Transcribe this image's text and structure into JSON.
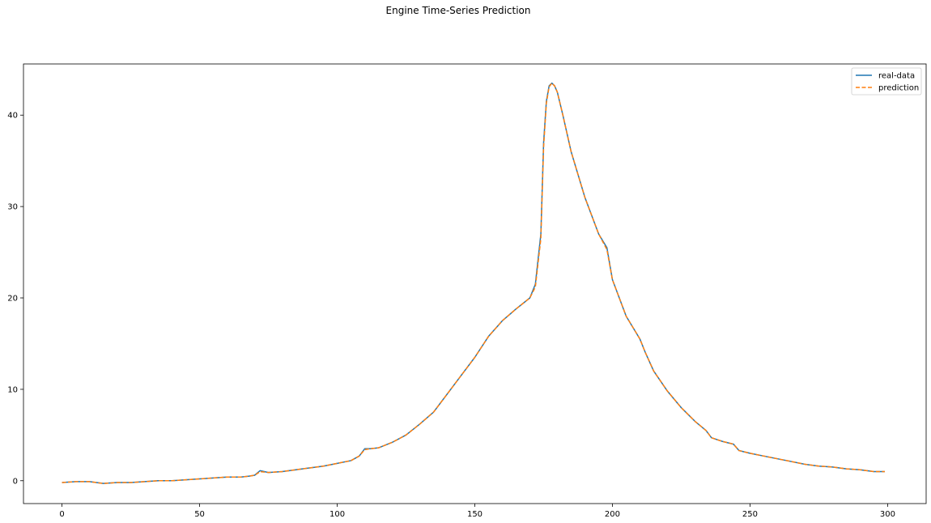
{
  "chart_data": {
    "type": "line",
    "title": "Engine Time-Series Prediction",
    "xlabel": "",
    "ylabel": "",
    "xlim": [
      -14,
      314
    ],
    "ylim": [
      -2.5,
      45.6
    ],
    "xticks": [
      0,
      50,
      100,
      150,
      200,
      250,
      300
    ],
    "yticks": [
      0,
      10,
      20,
      30,
      40
    ],
    "grid": false,
    "legend_position": "top-right",
    "series": [
      {
        "name": "real-data",
        "color": "#1f77b4",
        "line_style": "solid",
        "x": [
          0,
          5,
          10,
          15,
          20,
          25,
          30,
          35,
          40,
          45,
          50,
          55,
          60,
          65,
          68,
          70,
          72,
          75,
          80,
          85,
          90,
          95,
          100,
          105,
          108,
          110,
          112,
          115,
          120,
          125,
          130,
          135,
          140,
          145,
          150,
          155,
          160,
          165,
          170,
          172,
          174,
          175,
          176,
          177,
          178,
          179,
          180,
          182,
          185,
          190,
          195,
          198,
          200,
          205,
          210,
          212,
          215,
          220,
          225,
          230,
          234,
          236,
          240,
          244,
          246,
          250,
          255,
          260,
          265,
          270,
          275,
          280,
          285,
          290,
          295,
          299
        ],
        "values": [
          -0.2,
          -0.1,
          -0.1,
          -0.3,
          -0.2,
          -0.2,
          -0.1,
          0.0,
          0.0,
          0.1,
          0.2,
          0.3,
          0.4,
          0.4,
          0.5,
          0.6,
          1.1,
          0.9,
          1.0,
          1.2,
          1.4,
          1.6,
          1.9,
          2.2,
          2.7,
          3.5,
          3.5,
          3.6,
          4.2,
          5.0,
          6.2,
          7.5,
          9.5,
          11.5,
          13.5,
          15.8,
          17.5,
          18.8,
          20.0,
          21.5,
          27.0,
          37.0,
          41.5,
          43.2,
          43.5,
          43.2,
          42.5,
          40.0,
          36.0,
          31.0,
          27.0,
          25.5,
          22.0,
          18.0,
          15.5,
          14.0,
          12.0,
          9.8,
          8.0,
          6.5,
          5.5,
          4.7,
          4.3,
          4.0,
          3.3,
          3.0,
          2.7,
          2.4,
          2.1,
          1.8,
          1.6,
          1.5,
          1.3,
          1.2,
          1.0,
          1.0
        ]
      },
      {
        "name": "prediction",
        "color": "#ff7f0e",
        "line_style": "dashed",
        "x": [
          0,
          5,
          10,
          15,
          20,
          25,
          30,
          35,
          40,
          45,
          50,
          55,
          60,
          65,
          68,
          70,
          72,
          75,
          80,
          85,
          90,
          95,
          100,
          105,
          108,
          110,
          112,
          115,
          120,
          125,
          130,
          135,
          140,
          145,
          150,
          155,
          160,
          165,
          170,
          172,
          174,
          175,
          176,
          177,
          178,
          179,
          180,
          182,
          185,
          190,
          195,
          198,
          200,
          205,
          210,
          212,
          215,
          220,
          225,
          230,
          234,
          236,
          240,
          244,
          246,
          250,
          255,
          260,
          265,
          270,
          275,
          280,
          285,
          290,
          295,
          299
        ],
        "values": [
          -0.2,
          -0.1,
          -0.1,
          -0.3,
          -0.2,
          -0.2,
          -0.1,
          0.0,
          0.0,
          0.1,
          0.2,
          0.3,
          0.4,
          0.4,
          0.5,
          0.6,
          1.0,
          0.9,
          1.0,
          1.2,
          1.4,
          1.6,
          1.9,
          2.2,
          2.7,
          3.4,
          3.5,
          3.6,
          4.2,
          5.0,
          6.2,
          7.5,
          9.5,
          11.5,
          13.5,
          15.8,
          17.5,
          18.8,
          20.0,
          21.2,
          26.5,
          36.5,
          41.3,
          43.1,
          43.5,
          43.2,
          42.5,
          40.0,
          36.0,
          31.0,
          27.0,
          25.3,
          22.0,
          18.0,
          15.5,
          14.0,
          12.0,
          9.8,
          8.0,
          6.5,
          5.5,
          4.7,
          4.3,
          4.0,
          3.3,
          3.0,
          2.7,
          2.4,
          2.1,
          1.8,
          1.6,
          1.5,
          1.3,
          1.2,
          1.0,
          1.0
        ]
      }
    ]
  }
}
